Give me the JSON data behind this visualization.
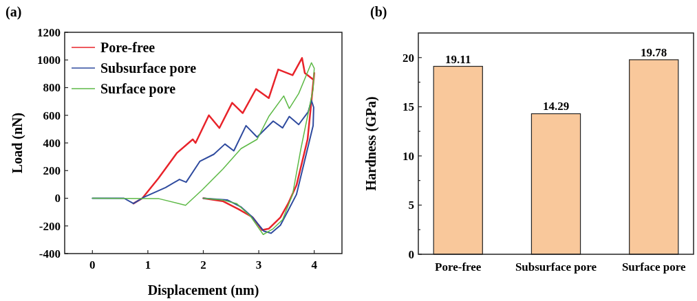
{
  "chart_data": [
    {
      "type": "line",
      "title": "(a)",
      "xlabel": "Displacement (nm)",
      "ylabel": "Load (nN)",
      "xlim": [
        -0.5,
        4.5
      ],
      "xticks": [
        0,
        1,
        2,
        3,
        4
      ],
      "ylim": [
        -400,
        1200
      ],
      "yticks": [
        -400,
        -200,
        0,
        200,
        400,
        600,
        800,
        1000,
        1200
      ],
      "legend": "top left",
      "grid": false,
      "marker": "none",
      "line_style": "solid",
      "series": [
        {
          "name": "Pore-free",
          "color": "#e8232a",
          "x": [
            0.74,
            0.9,
            1.19,
            1.52,
            1.81,
            1.86,
            2.1,
            2.29,
            2.52,
            2.71,
            2.95,
            3.18,
            3.35,
            3.61,
            3.78,
            3.83,
            3.99,
            4.0,
            3.88,
            3.68,
            3.53,
            3.39,
            3.18,
            3.06,
            2.89,
            2.64,
            2.35,
            2.0
          ],
          "values": [
            -38,
            0,
            144,
            326,
            426,
            400,
            600,
            508,
            690,
            616,
            790,
            724,
            931,
            890,
            1014,
            906,
            856,
            906,
            426,
            94,
            -38,
            -138,
            -220,
            -230,
            -138,
            -80,
            -21,
            0
          ]
        },
        {
          "name": "Subsurface pore",
          "color": "#2e4a9e",
          "x": [
            0,
            0.57,
            0.74,
            0.93,
            1.32,
            1.57,
            1.69,
            1.94,
            2.19,
            2.39,
            2.55,
            2.77,
            2.97,
            3.26,
            3.43,
            3.55,
            3.72,
            3.89,
            3.95,
            3.99,
            3.98,
            3.84,
            3.68,
            3.53,
            3.39,
            3.22,
            3.09,
            2.89,
            2.68,
            2.43,
            2.0
          ],
          "values": [
            0,
            0,
            -38,
            8,
            78,
            136,
            116,
            268,
            318,
            392,
            343,
            525,
            442,
            558,
            509,
            591,
            533,
            624,
            707,
            657,
            525,
            293,
            28,
            -88,
            -195,
            -253,
            -237,
            -138,
            -63,
            -12,
            0
          ]
        },
        {
          "name": "Surface pore",
          "color": "#5db946",
          "x": [
            0,
            1.2,
            1.68,
            1.98,
            2.35,
            2.68,
            2.97,
            3.18,
            3.45,
            3.55,
            3.72,
            3.95,
            4.0,
            3.98,
            3.76,
            3.61,
            3.43,
            3.26,
            3.08,
            2.85,
            2.6,
            2.35,
            2.0
          ],
          "values": [
            0,
            -3,
            -51,
            61,
            210,
            359,
            426,
            591,
            740,
            649,
            757,
            980,
            940,
            790,
            359,
            28,
            -154,
            -220,
            -262,
            -129,
            -38,
            -13,
            0
          ]
        }
      ]
    },
    {
      "type": "bar",
      "title": "(b)",
      "ylabel": "Hardness (GPa)",
      "categories": [
        "Pore-free",
        "Subsurface pore",
        "Surface pore"
      ],
      "values": [
        19.11,
        14.29,
        19.78
      ],
      "color": "#f9c89b",
      "ylim": [
        0,
        22.5
      ],
      "yticks": [
        0,
        {
          "value": 2.5,
          "label": null
        },
        5,
        {
          "value": 7.5,
          "label": null
        },
        10,
        {
          "value": 12.5,
          "label": null
        },
        15,
        {
          "value": 17.5,
          "label": null
        },
        20
      ],
      "data_labels": true,
      "grid": false
    }
  ]
}
